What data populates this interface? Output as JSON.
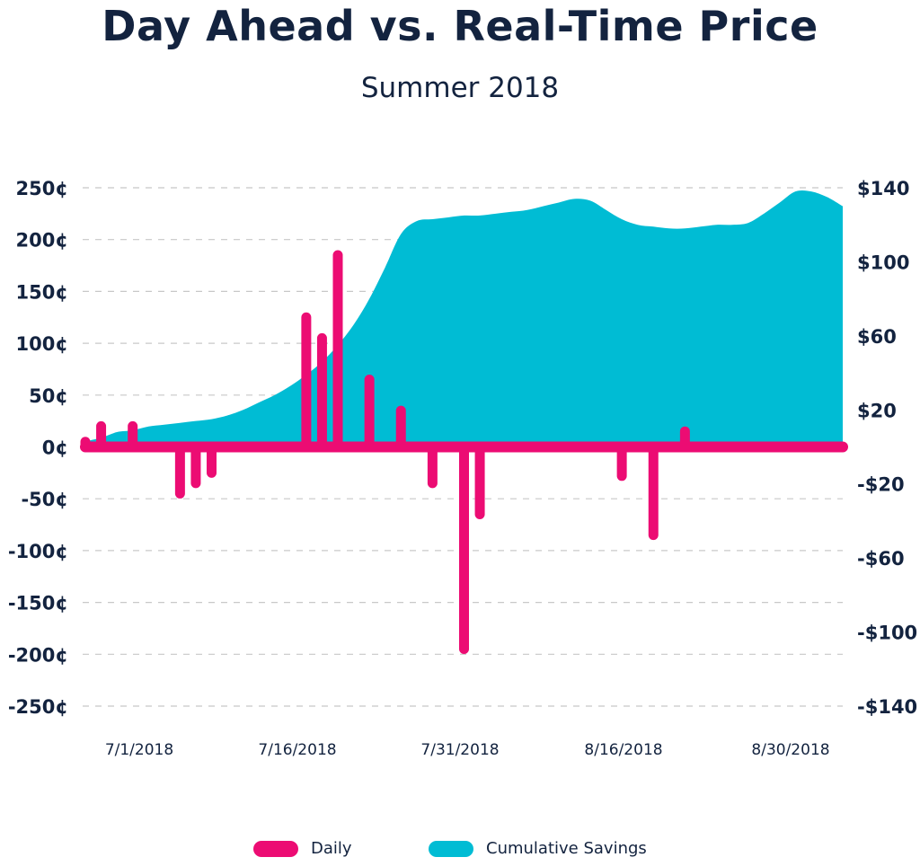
{
  "title": "Day Ahead vs. Real-Time Price",
  "subtitle": "Summer 2018",
  "colors": {
    "daily": "#ec0c73",
    "cumulative": "#00bcd4",
    "text": "#13233f",
    "grid": "#c8c8c8"
  },
  "legend": {
    "daily_label": "Daily",
    "cumulative_label": "Cumulative Savings"
  },
  "chart_data": {
    "type": "bar",
    "title": "Day Ahead vs. Real-Time Price",
    "subtitle": "Summer 2018",
    "grid": true,
    "legend_position": "bottom",
    "y_left": {
      "ylim": [
        -250,
        250
      ],
      "ticks": [
        250,
        200,
        150,
        100,
        50,
        0,
        -50,
        -100,
        -150,
        -200,
        -250
      ],
      "tick_labels": [
        "250¢",
        "200¢",
        "150¢",
        "100¢",
        "50¢",
        "0¢",
        "-50¢",
        "-100¢",
        "-150¢",
        "-200¢",
        "-250¢"
      ]
    },
    "y_right": {
      "ylim": [
        -140,
        140
      ],
      "tick_labels": [
        "$140",
        "$100",
        "$60",
        "$20",
        "-$20",
        "-$60",
        "-$100",
        "-$140"
      ]
    },
    "x_tick_labels": [
      "7/1/2018",
      "7/16/2018",
      "7/31/2018",
      "8/16/2018",
      "8/30/2018"
    ],
    "series": [
      {
        "name": "Daily",
        "type": "bar",
        "axis": "left",
        "values": [
          5,
          20,
          0,
          20,
          0,
          0,
          -45,
          -35,
          -25,
          0,
          0,
          0,
          0,
          0,
          125,
          105,
          185,
          0,
          65,
          0,
          35,
          0,
          -35,
          0,
          -195,
          -65,
          0,
          0,
          0,
          0,
          0,
          0,
          0,
          0,
          -28,
          0,
          -85,
          0,
          15,
          0,
          0,
          0,
          0,
          0,
          0,
          0,
          0,
          0,
          0
        ]
      },
      {
        "name": "Cumulative Savings",
        "type": "area",
        "axis": "right",
        "values": [
          3,
          5,
          8,
          9,
          11,
          12,
          13,
          14,
          15,
          17,
          20,
          24,
          28,
          33,
          39,
          46,
          55,
          66,
          80,
          97,
          115,
          122,
          123,
          124,
          125,
          125,
          126,
          127,
          128,
          130,
          132,
          134,
          133,
          128,
          123,
          120,
          119,
          118,
          118,
          119,
          120,
          120,
          121,
          126,
          132,
          138,
          138,
          135,
          130
        ]
      }
    ]
  }
}
